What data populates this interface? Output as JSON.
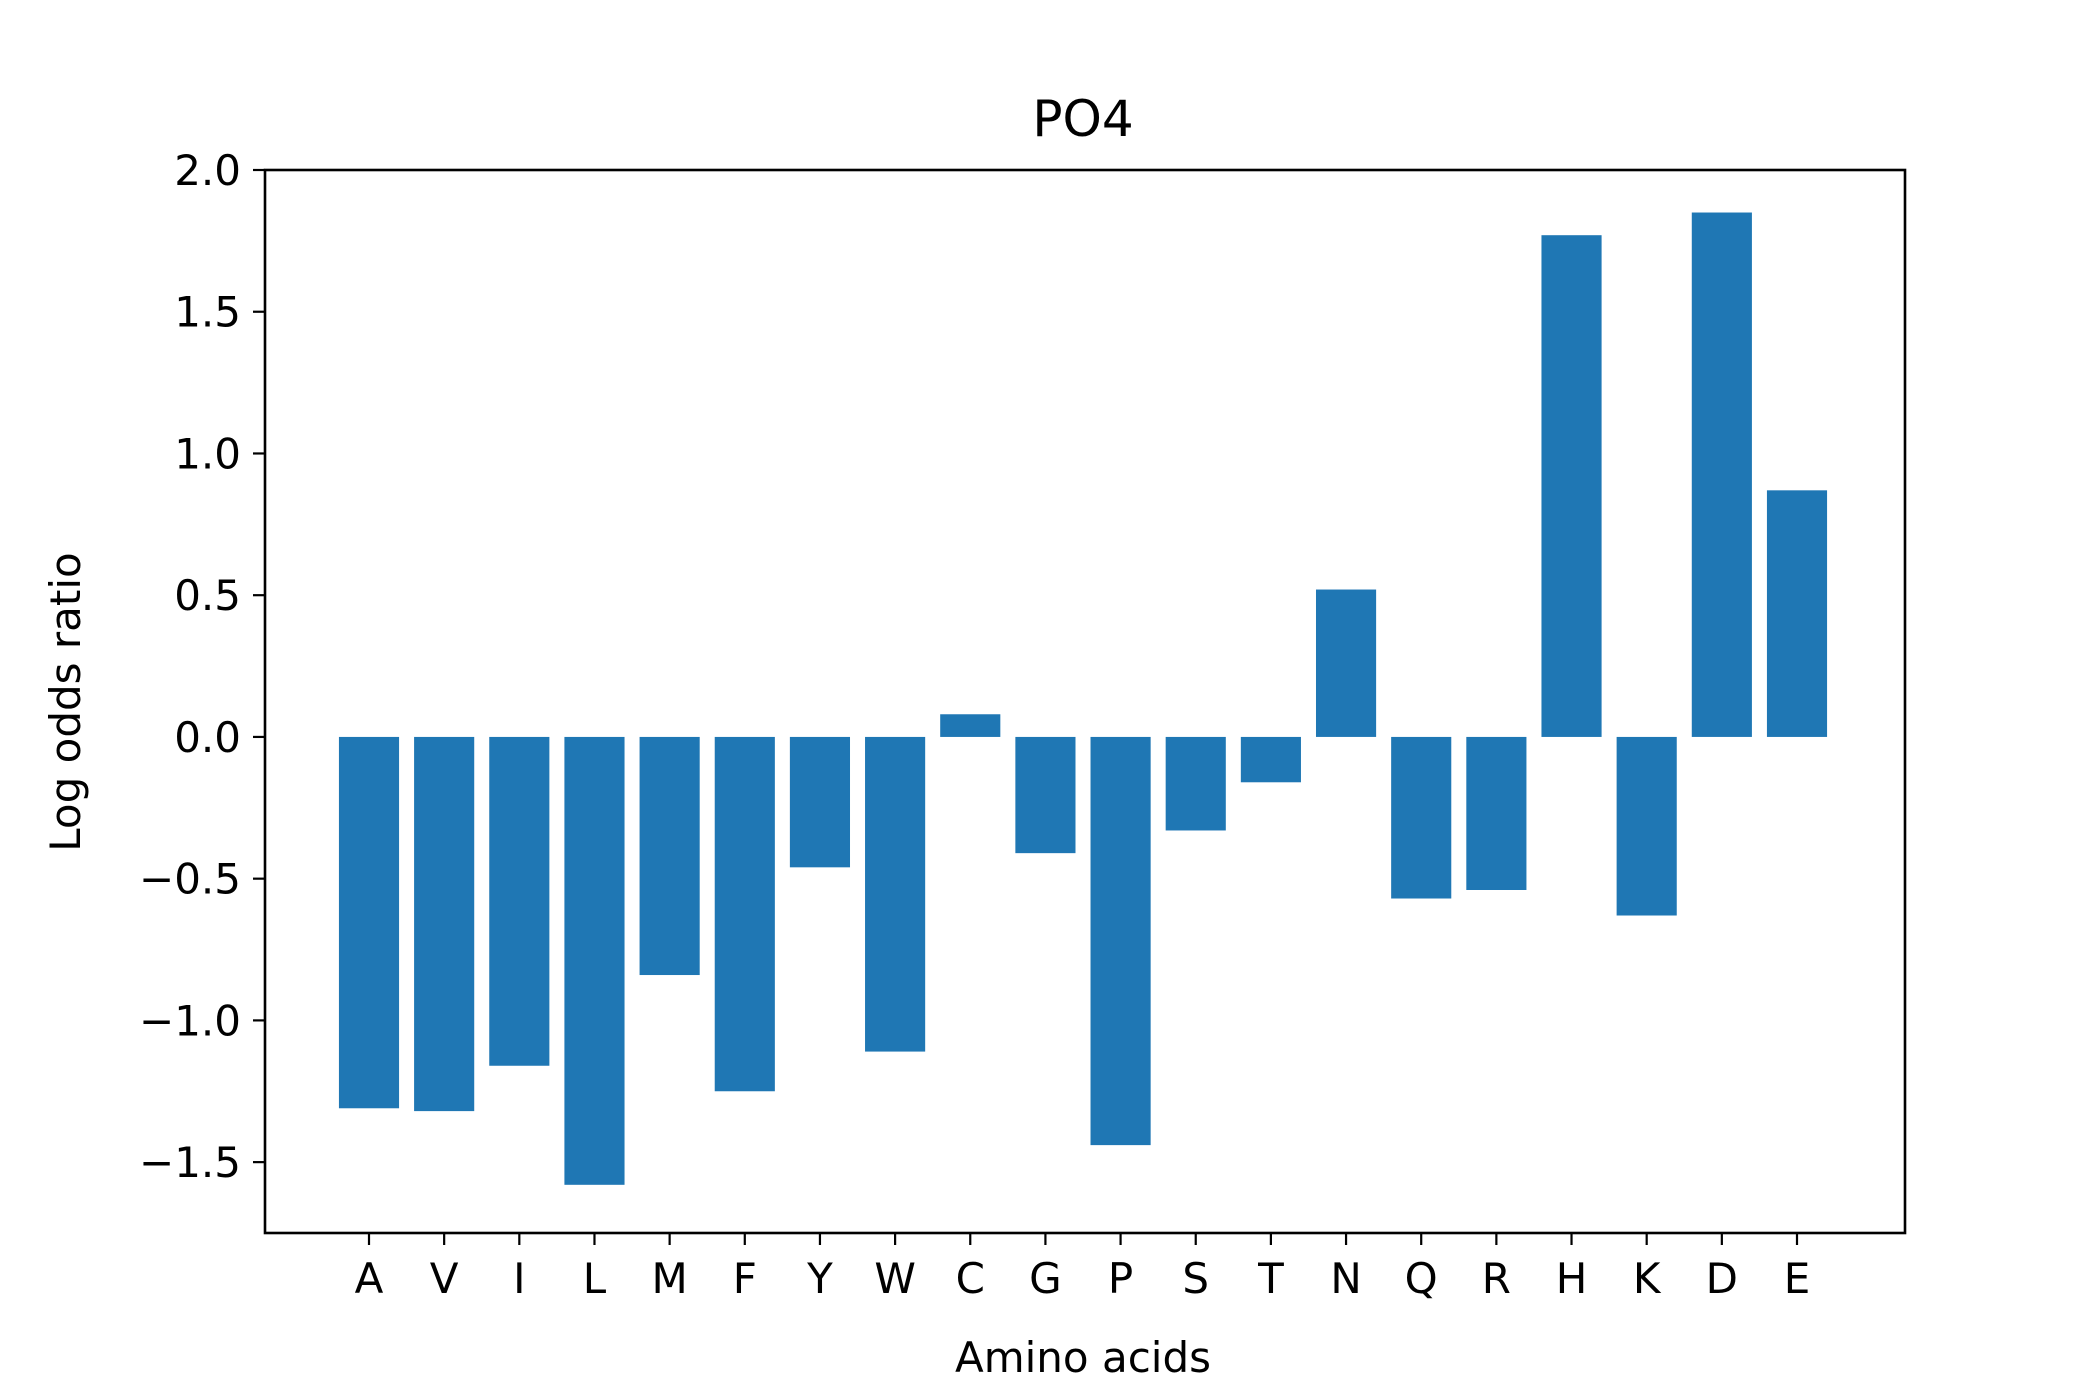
{
  "chart_data": {
    "type": "bar",
    "title": "PO4",
    "xlabel": "Amino acids",
    "ylabel": "Log odds ratio",
    "categories": [
      "A",
      "V",
      "I",
      "L",
      "M",
      "F",
      "Y",
      "W",
      "C",
      "G",
      "P",
      "S",
      "T",
      "N",
      "Q",
      "R",
      "H",
      "K",
      "D",
      "E"
    ],
    "values": [
      -1.31,
      -1.32,
      -1.16,
      -1.58,
      -0.84,
      -1.25,
      -0.46,
      -1.11,
      0.08,
      -0.41,
      -1.44,
      -0.33,
      -0.16,
      0.52,
      -0.57,
      -0.54,
      1.77,
      -0.63,
      1.85,
      0.87
    ],
    "ylim": [
      -1.75,
      2.0
    ],
    "yticks": [
      -1.5,
      -1.0,
      -0.5,
      0.0,
      0.5,
      1.0,
      1.5,
      2.0
    ],
    "ytick_labels": [
      "−1.5",
      "−1.0",
      "−0.5",
      "0.0",
      "0.5",
      "1.0",
      "1.5",
      "2.0"
    ],
    "bar_color": "#1f77b4",
    "grid": false,
    "legend": false
  }
}
